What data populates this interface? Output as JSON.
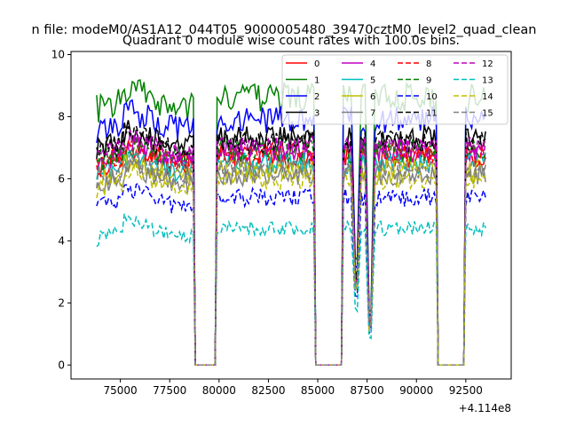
{
  "chart_data": {
    "type": "line",
    "suptitle": "n file: modeM0/AS1A12_044T05_9000005480_39470cztM0_level2_quad_clean",
    "title": "Quadrant 0 module wise count rates with 100.0s bins.",
    "xlabel": "",
    "ylabel": "",
    "x_offset_label": "+4.114e8",
    "xlim": [
      72500,
      94800
    ],
    "ylim": [
      -0.45,
      10.1
    ],
    "x_ticks": [
      75000,
      77500,
      80000,
      82500,
      85000,
      87500,
      90000,
      92500
    ],
    "x_tick_labels": [
      "75000",
      "77500",
      "80000",
      "82500",
      "85000",
      "87500",
      "90000",
      "92500"
    ],
    "y_ticks": [
      0,
      2,
      4,
      6,
      8,
      10
    ],
    "y_tick_labels": [
      "0",
      "2",
      "4",
      "6",
      "8",
      "10"
    ],
    "bin_seconds": 100,
    "x_range": [
      73800,
      93500
    ],
    "gaps": [
      [
        78700,
        78800,
        79800,
        79900
      ],
      [
        84800,
        84900,
        86200,
        86300
      ],
      [
        91000,
        91100,
        92400,
        92500
      ]
    ],
    "dips": [
      [
        86950,
        0.25
      ],
      [
        87650,
        0.0
      ]
    ],
    "legend_position": "top-right",
    "series": [
      {
        "name": "0",
        "color": "#ff0000",
        "dash": "solid",
        "level": 6.7
      },
      {
        "name": "1",
        "color": "#008000",
        "dash": "solid",
        "level": 8.6
      },
      {
        "name": "2",
        "color": "#0000ff",
        "dash": "solid",
        "level": 7.9
      },
      {
        "name": "3",
        "color": "#000000",
        "dash": "solid",
        "level": 7.3
      },
      {
        "name": "4",
        "color": "#bf00bf",
        "dash": "solid",
        "level": 6.9
      },
      {
        "name": "5",
        "color": "#00bfbf",
        "dash": "solid",
        "level": 6.5
      },
      {
        "name": "6",
        "color": "#bfbf00",
        "dash": "solid",
        "level": 6.3
      },
      {
        "name": "7",
        "color": "#808080",
        "dash": "solid",
        "level": 6.1
      },
      {
        "name": "8",
        "color": "#ff0000",
        "dash": "dashed",
        "level": 6.8
      },
      {
        "name": "9",
        "color": "#008000",
        "dash": "dashed",
        "level": 6.9
      },
      {
        "name": "10",
        "color": "#0000ff",
        "dash": "dashed",
        "level": 5.4
      },
      {
        "name": "11",
        "color": "#000000",
        "dash": "dashed",
        "level": 7.2
      },
      {
        "name": "12",
        "color": "#bf00bf",
        "dash": "dashed",
        "level": 7.0
      },
      {
        "name": "13",
        "color": "#00bfbf",
        "dash": "dashed",
        "level": 4.4
      },
      {
        "name": "14",
        "color": "#bfbf00",
        "dash": "dashed",
        "level": 6.0
      },
      {
        "name": "15",
        "color": "#808080",
        "dash": "dashed",
        "level": 6.3
      }
    ]
  }
}
